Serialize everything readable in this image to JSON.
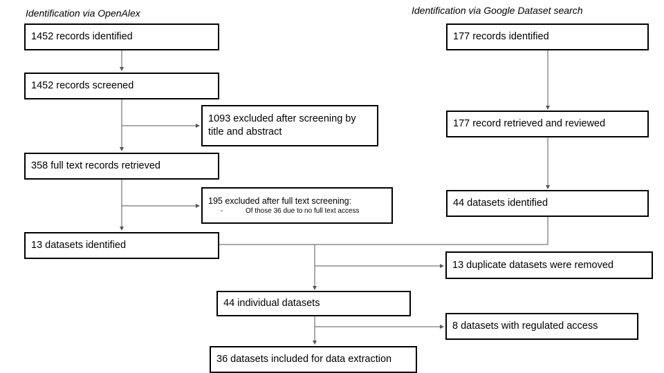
{
  "headings": {
    "left": "Identification via OpenAlex",
    "right": "Identification via Google Dataset search"
  },
  "openalex": {
    "identified": "1452 records identified",
    "screened": "1452 records screened",
    "excluded_screening": "1093 excluded after screening by title and abstract",
    "full_text": "358 full text records retrieved",
    "excluded_full_text": "195 excluded after full text screening:",
    "excluded_full_text_bullet": "-",
    "excluded_full_text_sub": "Of those 36 due to no full text access",
    "datasets": "13 datasets identified"
  },
  "google": {
    "identified": "177 records identified",
    "reviewed": "177 record retrieved and reviewed",
    "datasets": "44 datasets identified"
  },
  "merged": {
    "duplicates": "13 duplicate datasets were removed",
    "individual": "44 individual datasets",
    "regulated": "8 datasets with regulated access",
    "included": "36 datasets included for data extraction"
  },
  "colors": {
    "box_border": "#000000",
    "connector": "#555555"
  }
}
